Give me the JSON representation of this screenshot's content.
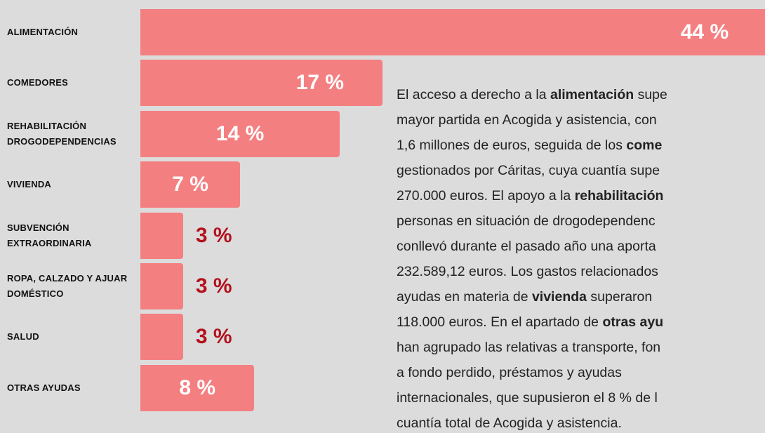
{
  "chart_data": {
    "type": "barh",
    "categories": [
      "ALIMENTACIÓN",
      "COMEDORES",
      "REHABILITACIÓN DROGODEPENDENCIAS",
      "VIVIENDA",
      "SUBVENCIÓN EXTRAORDINARIA",
      "ROPA, CALZADO Y AJUAR DOMÉSTICO",
      "SALUD",
      "OTRAS AYUDAS"
    ],
    "values": [
      44,
      17,
      14,
      7,
      3,
      3,
      3,
      8
    ],
    "value_labels": [
      "44 %",
      "17 %",
      "14 %",
      "7 %",
      "3 %",
      "3 %",
      "3 %",
      "8 %"
    ],
    "color": "#f47f81"
  },
  "paragraph": {
    "lines": [
      [
        {
          "text": "El acceso a derecho a la "
        },
        {
          "text": "alimentación",
          "bold": true
        },
        {
          "text": " supe"
        }
      ],
      [
        {
          "text": "mayor partida en Acogida y asistencia, con"
        }
      ],
      [
        {
          "text": "1,6 millones de euros, seguida de los "
        },
        {
          "text": "come",
          "bold": true
        }
      ],
      [
        {
          "text": "gestionados por Cáritas, cuya cuantía supe"
        }
      ],
      [
        {
          "text": "270.000 euros. El apoyo a la "
        },
        {
          "text": "rehabilitación",
          "bold": true
        }
      ],
      [
        {
          "text": "personas en situación de drogodependenc"
        }
      ],
      [
        {
          "text": "conllevó durante el pasado año una aporta"
        }
      ],
      [
        {
          "text": "232.589,12 euros. Los gastos relacionados"
        }
      ],
      [
        {
          "text": "ayudas en materia de "
        },
        {
          "text": "vivienda",
          "bold": true
        },
        {
          "text": " superaron"
        }
      ],
      [
        {
          "text": "118.000 euros. En el apartado de "
        },
        {
          "text": "otras ayu",
          "bold": true
        }
      ],
      [
        {
          "text": "han agrupado las relativas a transporte, fon"
        }
      ],
      [
        {
          "text": "a fondo perdido, préstamos y ayudas"
        }
      ],
      [
        {
          "text": "internacionales, que supusieron el 8 % de l"
        }
      ],
      [
        {
          "text": "cuantía total de Acogida y asistencia."
        }
      ]
    ]
  }
}
